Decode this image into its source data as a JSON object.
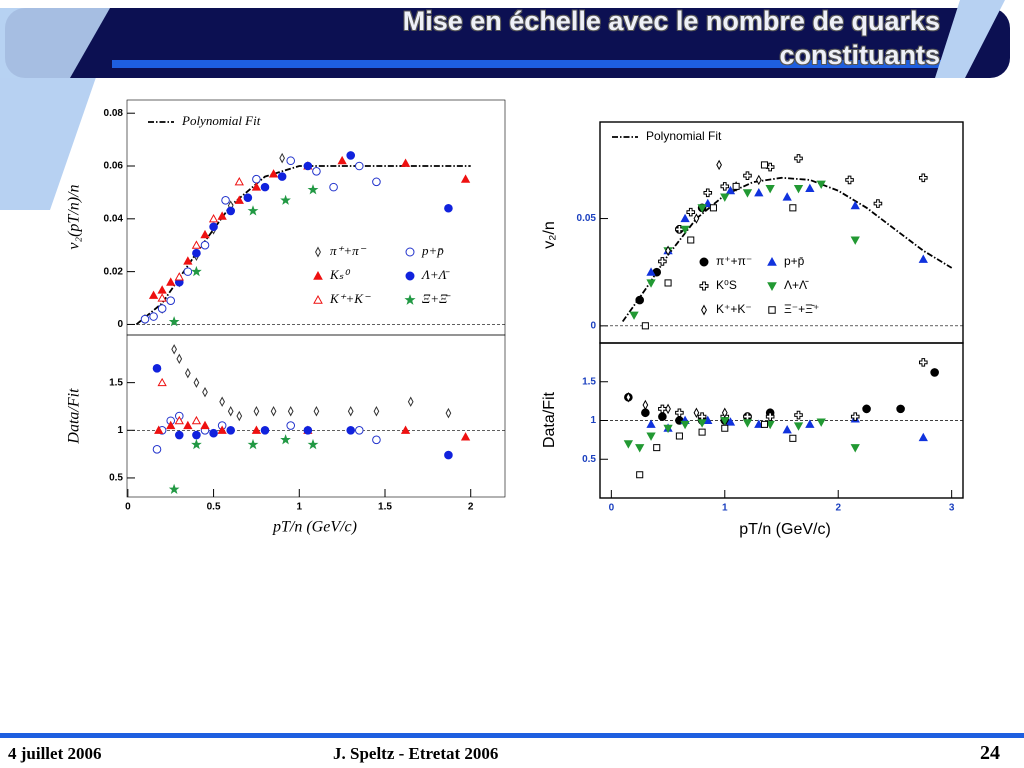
{
  "slide": {
    "title": "Mise en échelle avec le nombre de quarks constituants",
    "footer_left": "4 juillet 2006",
    "footer_center": "J. Speltz - Etretat 2006",
    "page_number": "24"
  },
  "chart_data": [
    {
      "type": "scatter",
      "ylabel": "v₂(pT/n)/n",
      "xlim": [
        -0.005,
        2.2
      ],
      "ylim": [
        -0.004,
        0.085
      ],
      "yticks": [
        0,
        0.02,
        0.04,
        0.06,
        0.08
      ],
      "reference_line": 0,
      "series": [
        {
          "name": "Polynomial Fit",
          "color": "#000000",
          "style": "dash-dot",
          "x": [
            0.05,
            0.2,
            0.4,
            0.6,
            0.8,
            1.0,
            1.2,
            1.5,
            2.0
          ],
          "values": [
            0,
            0.008,
            0.027,
            0.045,
            0.056,
            0.06,
            0.06,
            0.06,
            0.06
          ]
        },
        {
          "name": "π⁺+π⁻",
          "color": "#333333",
          "marker": "diamond-open",
          "x": [
            0.1,
            0.2,
            0.3,
            0.4,
            0.5,
            0.6,
            0.9
          ],
          "values": [
            0.002,
            0.006,
            0.016,
            0.026,
            0.036,
            0.045,
            0.063
          ]
        },
        {
          "name": "p+p̄",
          "color": "#2233cc",
          "marker": "circle-open",
          "x": [
            0.1,
            0.15,
            0.2,
            0.25,
            0.35,
            0.45,
            0.57,
            0.75,
            0.95,
            1.1,
            1.2,
            1.35,
            1.45
          ],
          "values": [
            0.002,
            0.003,
            0.006,
            0.009,
            0.02,
            0.03,
            0.047,
            0.055,
            0.062,
            0.058,
            0.052,
            0.06,
            0.054
          ]
        },
        {
          "name": "Kₛ⁰",
          "color": "#ee1111",
          "marker": "triangle-filled",
          "x": [
            0.15,
            0.2,
            0.25,
            0.35,
            0.45,
            0.55,
            0.65,
            0.75,
            0.85,
            1.05,
            1.25,
            1.62,
            1.97
          ],
          "values": [
            0.011,
            0.013,
            0.016,
            0.024,
            0.034,
            0.041,
            0.047,
            0.052,
            0.057,
            0.06,
            0.062,
            0.061,
            0.055
          ]
        },
        {
          "name": "Λ+Λ̄",
          "color": "#1122dd",
          "marker": "circle-filled",
          "x": [
            0.3,
            0.4,
            0.5,
            0.6,
            0.7,
            0.8,
            0.9,
            1.05,
            1.3,
            1.87
          ],
          "values": [
            0.016,
            0.027,
            0.037,
            0.043,
            0.048,
            0.052,
            0.056,
            0.06,
            0.064,
            0.044
          ]
        },
        {
          "name": "K⁺+K⁻",
          "color": "#ee1111",
          "marker": "triangle-open",
          "x": [
            0.2,
            0.3,
            0.4,
            0.5,
            0.65
          ],
          "values": [
            0.01,
            0.018,
            0.03,
            0.04,
            0.054
          ]
        },
        {
          "name": "Ξ+Ξ̄",
          "color": "#229944",
          "marker": "star",
          "x": [
            0.27,
            0.4,
            0.73,
            0.92,
            1.08
          ],
          "values": [
            0.001,
            0.02,
            0.043,
            0.047,
            0.051
          ]
        }
      ]
    },
    {
      "type": "scatter",
      "ylabel": "Data/Fit",
      "xlabel": "pT/n (GeV/c)",
      "xlim": [
        -0.005,
        2.2
      ],
      "ylim": [
        0.3,
        2.0
      ],
      "yticks": [
        0.5,
        1,
        1.5
      ],
      "xticks": [
        0,
        0.5,
        1,
        1.5,
        2
      ],
      "reference_line": 1,
      "series": [
        {
          "color": "#333333",
          "marker": "diamond-open",
          "x": [
            0.27,
            0.3,
            0.35,
            0.4,
            0.45,
            0.55,
            0.6,
            0.65,
            0.75,
            0.85,
            0.95,
            1.1,
            1.3,
            1.45,
            1.65,
            1.87
          ],
          "values": [
            1.85,
            1.75,
            1.6,
            1.5,
            1.4,
            1.3,
            1.2,
            1.15,
            1.2,
            1.2,
            1.2,
            1.2,
            1.2,
            1.2,
            1.3,
            1.18
          ]
        },
        {
          "color": "#2233cc",
          "marker": "circle-open",
          "x": [
            0.17,
            0.2,
            0.25,
            0.3,
            0.45,
            0.55,
            0.95,
            1.35,
            1.45
          ],
          "values": [
            0.8,
            1.0,
            1.1,
            1.15,
            1.0,
            1.05,
            1.05,
            1.0,
            0.9
          ]
        },
        {
          "color": "#ee1111",
          "marker": "triangle-filled",
          "x": [
            0.18,
            0.25,
            0.35,
            0.45,
            0.55,
            0.75,
            1.05,
            1.62,
            1.97
          ],
          "values": [
            1.0,
            1.05,
            1.05,
            1.05,
            1.0,
            1.0,
            1.0,
            1.0,
            0.93
          ]
        },
        {
          "color": "#1122dd",
          "marker": "circle-filled",
          "x": [
            0.17,
            0.3,
            0.4,
            0.5,
            0.6,
            0.8,
            1.05,
            1.3,
            1.87
          ],
          "values": [
            1.65,
            0.95,
            0.95,
            0.97,
            1.0,
            1.0,
            1.0,
            1.0,
            0.74
          ]
        },
        {
          "color": "#ee1111",
          "marker": "triangle-open",
          "x": [
            0.2,
            0.3,
            0.4
          ],
          "values": [
            1.5,
            1.1,
            1.1
          ]
        },
        {
          "color": "#229944",
          "marker": "star",
          "x": [
            0.27,
            0.4,
            0.73,
            0.92,
            1.08
          ],
          "values": [
            0.38,
            0.85,
            0.85,
            0.9,
            0.85
          ]
        }
      ]
    },
    {
      "type": "scatter",
      "ylabel": "v₂/n",
      "xlim": [
        -0.1,
        3.1
      ],
      "ylim": [
        -0.008,
        0.095
      ],
      "yticks": [
        0,
        0.05
      ],
      "reference_line": 0,
      "series": [
        {
          "name": "Polynomial Fit",
          "color": "#000000",
          "style": "dash-dot",
          "x": [
            0.1,
            0.3,
            0.5,
            0.75,
            1.0,
            1.25,
            1.5,
            1.75,
            2.0,
            2.25,
            2.5,
            2.75,
            3.0
          ],
          "values": [
            0.002,
            0.017,
            0.033,
            0.05,
            0.061,
            0.067,
            0.069,
            0.068,
            0.063,
            0.055,
            0.045,
            0.035,
            0.027
          ]
        },
        {
          "name": "π⁺+π⁻",
          "color": "#000000",
          "marker": "circle-filled",
          "x": [
            0.25,
            0.4,
            0.6,
            0.8
          ],
          "values": [
            0.012,
            0.025,
            0.045,
            0.055
          ]
        },
        {
          "name": "p+p̄",
          "color": "#1133dd",
          "marker": "triangle-filled",
          "x": [
            0.35,
            0.5,
            0.65,
            0.85,
            1.05,
            1.3,
            1.55,
            1.75,
            2.15,
            2.75
          ],
          "values": [
            0.025,
            0.035,
            0.05,
            0.057,
            0.063,
            0.062,
            0.06,
            0.064,
            0.056,
            0.031
          ]
        },
        {
          "name": "K⁰S",
          "color": "#000000",
          "marker": "cross-open",
          "x": [
            0.45,
            0.6,
            0.7,
            0.85,
            1.0,
            1.2,
            1.4,
            1.65,
            2.1,
            2.35,
            2.75
          ],
          "values": [
            0.03,
            0.045,
            0.053,
            0.062,
            0.065,
            0.07,
            0.074,
            0.078,
            0.068,
            0.057,
            0.069
          ]
        },
        {
          "name": "Λ+Λ̄",
          "color": "#229933",
          "marker": "triangle-down-filled",
          "x": [
            0.2,
            0.35,
            0.5,
            0.65,
            0.8,
            1.0,
            1.2,
            1.4,
            1.65,
            1.85,
            2.15
          ],
          "values": [
            0.005,
            0.02,
            0.035,
            0.045,
            0.055,
            0.06,
            0.062,
            0.064,
            0.064,
            0.066,
            0.04
          ]
        },
        {
          "name": "K⁺+K⁻",
          "color": "#000000",
          "marker": "diamond-open",
          "x": [
            0.5,
            0.75,
            0.95,
            1.1,
            1.3
          ],
          "values": [
            0.035,
            0.05,
            0.075,
            0.065,
            0.068
          ]
        },
        {
          "name": "Ξ⁻+Ξ̄⁺",
          "color": "#000000",
          "marker": "square-open",
          "x": [
            0.3,
            0.5,
            0.7,
            0.9,
            1.1,
            1.35,
            1.6
          ],
          "values": [
            0.0,
            0.02,
            0.04,
            0.055,
            0.065,
            0.075,
            0.055
          ]
        }
      ]
    },
    {
      "type": "scatter",
      "ylabel": "Data/Fit",
      "xlabel": "pT/n (GeV/c)",
      "xlim": [
        -0.1,
        3.1
      ],
      "ylim": [
        0,
        2
      ],
      "yticks": [
        0.5,
        1,
        1.5
      ],
      "xticks": [
        0,
        1,
        2,
        3
      ],
      "reference_line": 1,
      "series": [
        {
          "color": "#000000",
          "marker": "circle-filled",
          "x": [
            0.15,
            0.3,
            0.45,
            0.6,
            0.8,
            1.0,
            1.2,
            1.4,
            2.25,
            2.55,
            2.85
          ],
          "values": [
            1.3,
            1.1,
            1.05,
            1.0,
            1.0,
            1.0,
            1.05,
            1.1,
            1.15,
            1.15,
            1.62
          ]
        },
        {
          "color": "#1133dd",
          "marker": "triangle-filled",
          "x": [
            0.35,
            0.5,
            0.65,
            0.85,
            1.05,
            1.3,
            1.55,
            1.75,
            2.15,
            2.75
          ],
          "values": [
            0.95,
            0.9,
            1.0,
            1.0,
            0.98,
            0.95,
            0.88,
            0.95,
            1.02,
            0.78
          ]
        },
        {
          "color": "#000000",
          "marker": "cross-open",
          "x": [
            0.45,
            0.6,
            0.8,
            1.0,
            1.2,
            1.4,
            1.65,
            2.15,
            2.75
          ],
          "values": [
            1.15,
            1.1,
            1.05,
            1.05,
            1.05,
            1.05,
            1.07,
            1.05,
            1.75
          ]
        },
        {
          "color": "#229933",
          "marker": "triangle-down-filled",
          "x": [
            0.15,
            0.25,
            0.35,
            0.5,
            0.65,
            0.8,
            1.0,
            1.2,
            1.4,
            1.65,
            1.85,
            2.15
          ],
          "values": [
            0.7,
            0.65,
            0.8,
            0.9,
            0.95,
            0.97,
            1.0,
            0.97,
            0.95,
            0.93,
            0.98,
            0.65
          ]
        },
        {
          "color": "#000000",
          "marker": "diamond-open",
          "x": [
            0.15,
            0.3,
            0.5,
            0.75,
            1.0
          ],
          "values": [
            1.3,
            1.2,
            1.15,
            1.1,
            1.1
          ]
        },
        {
          "color": "#000000",
          "marker": "square-open",
          "x": [
            0.25,
            0.4,
            0.6,
            0.8,
            1.0,
            1.35,
            1.6
          ],
          "values": [
            0.3,
            0.65,
            0.8,
            0.85,
            0.9,
            0.95,
            0.77
          ]
        }
      ]
    }
  ]
}
